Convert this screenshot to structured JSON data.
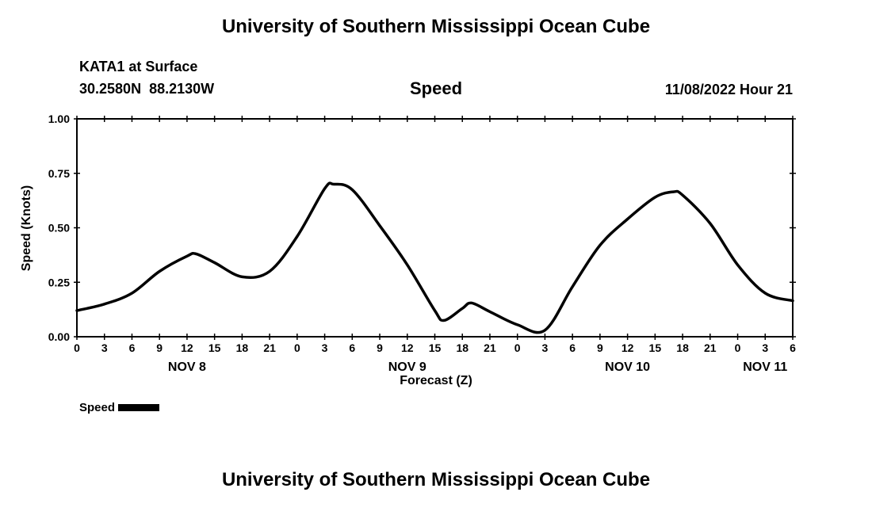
{
  "page": {
    "title_top": "University of Southern Mississippi Ocean Cube",
    "title_bottom": "University of Southern Mississippi Ocean Cube"
  },
  "header": {
    "station": "KATA1 at Surface",
    "coordinates": "30.2580N  88.2130W",
    "plot_title": "Speed",
    "datetime": "11/08/2022 Hour 21"
  },
  "legend": {
    "label": "Speed"
  },
  "chart_data": {
    "type": "line",
    "title": "Speed",
    "xlabel": "Forecast (Z)",
    "ylabel": "Speed (Knots)",
    "ylim": [
      0,
      1
    ],
    "xlim_hours": [
      0,
      78
    ],
    "grid": false,
    "legend_position": "bottom-left",
    "line_color": "#000000",
    "y_ticks": [
      0,
      0.25,
      0.5,
      0.75,
      1
    ],
    "y_tick_labels": [
      "0.00",
      "0.25",
      "0.50",
      "0.75",
      "1.00"
    ],
    "x_tick_hours": [
      0,
      3,
      6,
      9,
      12,
      15,
      18,
      21,
      24,
      27,
      30,
      33,
      36,
      39,
      42,
      45,
      48,
      51,
      54,
      57,
      60,
      63,
      66,
      69,
      72,
      75,
      78
    ],
    "x_tick_labels": [
      "0",
      "3",
      "6",
      "9",
      "12",
      "15",
      "18",
      "21",
      "0",
      "3",
      "6",
      "9",
      "12",
      "15",
      "18",
      "21",
      "0",
      "3",
      "6",
      "9",
      "12",
      "15",
      "18",
      "21",
      "0",
      "3",
      "6"
    ],
    "day_labels": [
      {
        "label": "NOV 8",
        "hour": 12
      },
      {
        "label": "NOV 9",
        "hour": 36
      },
      {
        "label": "NOV 10",
        "hour": 60
      },
      {
        "label": "NOV 11",
        "hour": 75
      }
    ],
    "series": [
      {
        "name": "Speed",
        "points": [
          [
            0,
            0.12
          ],
          [
            3,
            0.15
          ],
          [
            6,
            0.2
          ],
          [
            9,
            0.3
          ],
          [
            12,
            0.37
          ],
          [
            13,
            0.38
          ],
          [
            15,
            0.34
          ],
          [
            18,
            0.275
          ],
          [
            21,
            0.3
          ],
          [
            24,
            0.46
          ],
          [
            27,
            0.68
          ],
          [
            28,
            0.7
          ],
          [
            30,
            0.675
          ],
          [
            33,
            0.51
          ],
          [
            36,
            0.33
          ],
          [
            39,
            0.12
          ],
          [
            40,
            0.075
          ],
          [
            42,
            0.13
          ],
          [
            43,
            0.155
          ],
          [
            45,
            0.115
          ],
          [
            48,
            0.055
          ],
          [
            51,
            0.03
          ],
          [
            54,
            0.23
          ],
          [
            57,
            0.42
          ],
          [
            60,
            0.54
          ],
          [
            63,
            0.64
          ],
          [
            65,
            0.665
          ],
          [
            66,
            0.65
          ],
          [
            69,
            0.52
          ],
          [
            72,
            0.33
          ],
          [
            75,
            0.2
          ],
          [
            78,
            0.165
          ]
        ]
      }
    ]
  }
}
